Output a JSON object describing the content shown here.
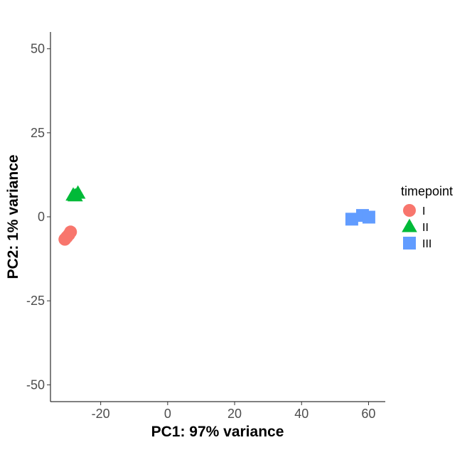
{
  "chart_data": {
    "type": "scatter",
    "title": "",
    "xlabel": "PC1: 97% variance",
    "ylabel": "PC2: 1% variance",
    "xlim": [
      -35,
      65
    ],
    "ylim": [
      -55,
      55
    ],
    "x_ticks": [
      -20,
      0,
      20,
      40,
      60
    ],
    "y_ticks": [
      -50,
      -25,
      0,
      25,
      50
    ],
    "x_tick_labels": [
      "-20",
      "0",
      "20",
      "40",
      "60"
    ],
    "y_tick_labels": [
      "-50",
      "-25",
      "0",
      "25",
      "50"
    ],
    "grid": false,
    "legend": {
      "title": "timepoint",
      "position": "right"
    },
    "series": [
      {
        "name": "I",
        "shape": "circle",
        "color": "#F8766D",
        "points": [
          {
            "x": -29.0,
            "y": -4.5
          },
          {
            "x": -29.5,
            "y": -5.3
          },
          {
            "x": -30.1,
            "y": -6.0
          },
          {
            "x": -30.7,
            "y": -6.7
          }
        ]
      },
      {
        "name": "II",
        "shape": "triangle",
        "color": "#00BA38",
        "points": [
          {
            "x": -28.2,
            "y": 6.4
          },
          {
            "x": -26.8,
            "y": 7.0
          },
          {
            "x": -27.6,
            "y": 6.2
          }
        ]
      },
      {
        "name": "III",
        "shape": "square",
        "color": "#619CFF",
        "points": [
          {
            "x": 55.0,
            "y": -0.7
          },
          {
            "x": 58.2,
            "y": 0.4
          },
          {
            "x": 60.1,
            "y": -0.1
          }
        ]
      }
    ]
  }
}
